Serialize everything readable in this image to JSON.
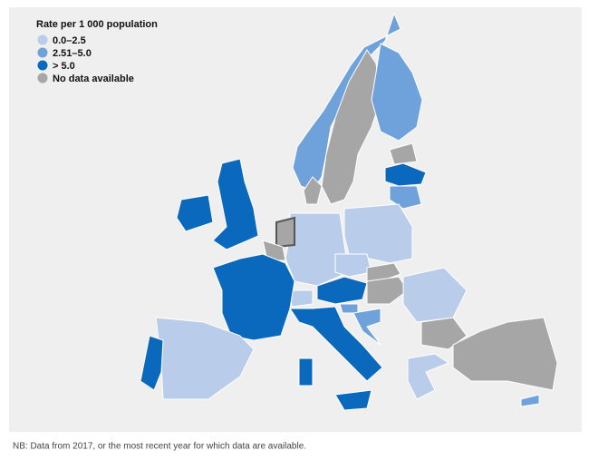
{
  "legend": {
    "title": "Rate per 1 000 population",
    "items": [
      {
        "label": "0.0–2.5",
        "color": "#b9cdea"
      },
      {
        "label": "2.51–5.0",
        "color": "#6fa1db"
      },
      {
        "label": "> 5.0",
        "color": "#0b69bd"
      },
      {
        "label": "No data available",
        "color": "#a6a6a6"
      }
    ]
  },
  "footnote": "NB: Data from 2017, or the most recent year for which data are available."
}
